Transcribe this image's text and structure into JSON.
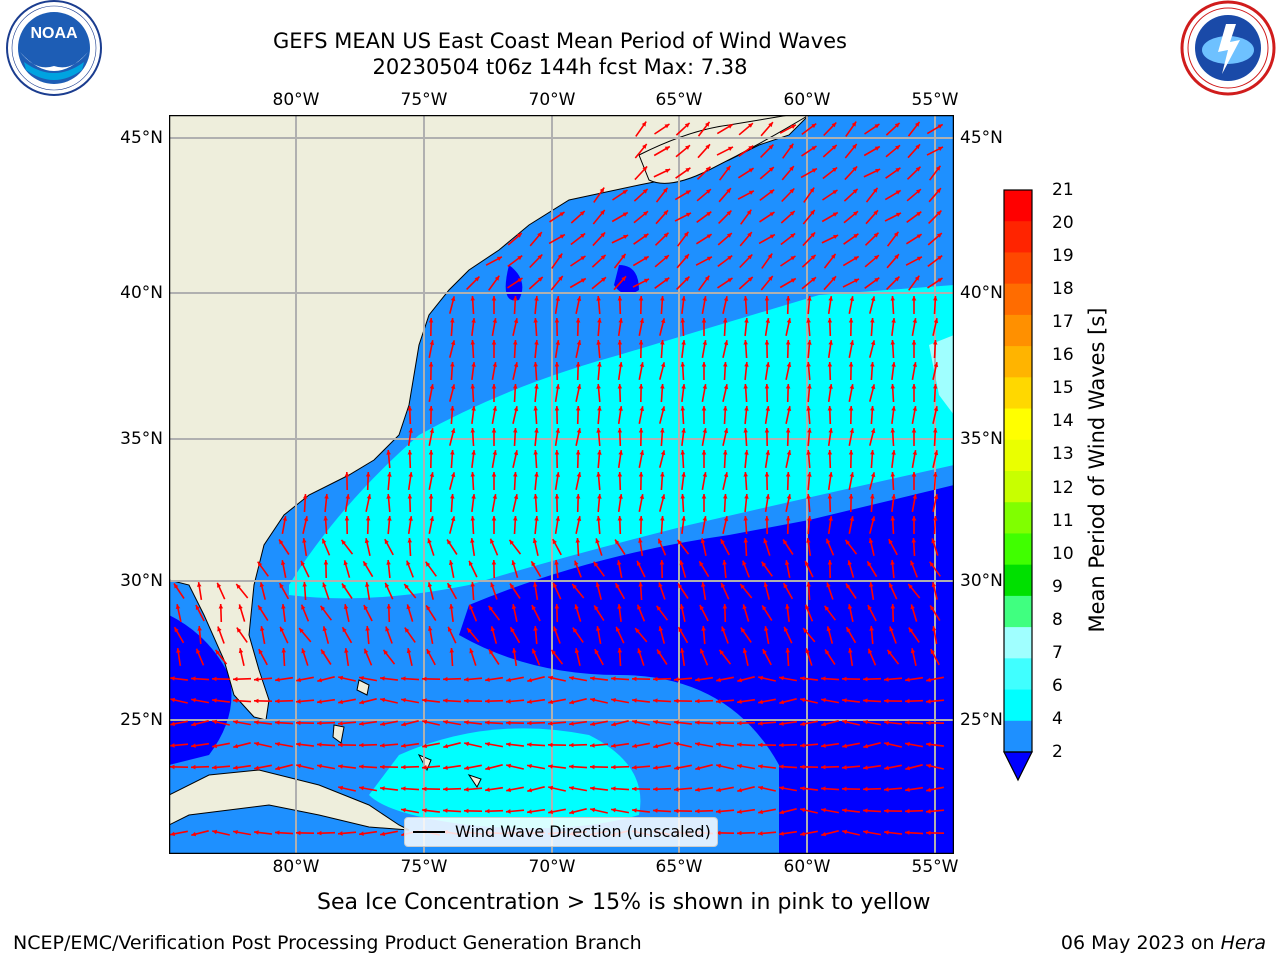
{
  "title_line1": "GEFS MEAN US East Coast Mean Period of Wind Waves",
  "title_line2": "20230504 t06z 144h fcst   Max: 7.38",
  "lon_ticks": [
    "80°W",
    "75°W",
    "70°W",
    "65°W",
    "60°W",
    "55°W"
  ],
  "lat_ticks": [
    "45°N",
    "40°N",
    "35°N",
    "30°N",
    "25°N"
  ],
  "legend_label": "Wind Wave Direction (unscaled)",
  "colorbar": {
    "label": "Mean Period of Wind Waves [s]",
    "ticks": [
      "21",
      "20",
      "19",
      "18",
      "17",
      "16",
      "15",
      "14",
      "13",
      "12",
      "11",
      "10",
      "9",
      "8",
      "7",
      "6",
      "4",
      "2"
    ],
    "colors": [
      "#ff0000",
      "#ff2400",
      "#ff4800",
      "#ff6c00",
      "#ff9000",
      "#ffb400",
      "#ffd800",
      "#ffff00",
      "#eaff00",
      "#c8ff00",
      "#80ff00",
      "#40ff00",
      "#00e000",
      "#40ff80",
      "#a0ffff",
      "#40ffff",
      "#00ffff",
      "#1e90ff"
    ],
    "under_color": "#0000ff"
  },
  "sea_ice_note": "Sea Ice Concentration > 15% is shown in pink to yellow",
  "footer_left": "NCEP/EMC/Verification Post Processing Product Generation Branch",
  "footer_right_date": "06 May 2023 on ",
  "footer_right_host": "Hera",
  "logos": {
    "noaa_text": "NOAA",
    "noaa_ring": "NATIONAL OCEANIC AND ATMOSPHERIC ADMINISTRATION · U.S. DEPARTMENT OF COMMERCE",
    "nws_ring": "NATIONAL WEATHER SERVICE"
  },
  "map_colors": {
    "land": "#eeeedc",
    "ocean_blue": "#1e90ff",
    "ocean_dark": "#0000ff",
    "ocean_cyan": "#00ffff",
    "arrow": "#ff0000"
  }
}
